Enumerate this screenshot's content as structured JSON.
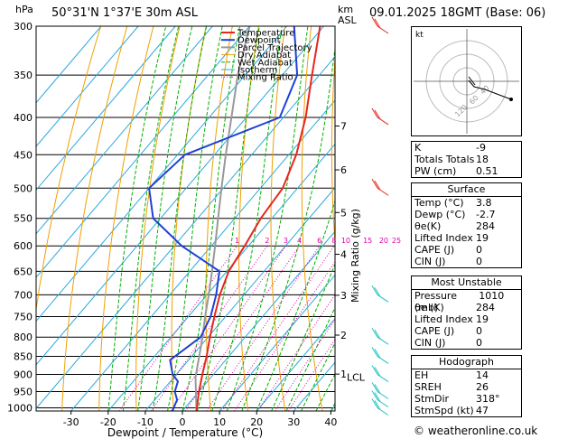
{
  "header": {
    "location": "50°31'N  1°37'E  30m  ASL",
    "datetime": "09.01.2025  18GMT  (Base: 06)",
    "hpa_label": "hPa",
    "km_label": "km",
    "asl_label": "ASL"
  },
  "chart_data": {
    "type": "skewt",
    "xlabel": "Dewpoint / Temperature (°C)",
    "ylabel": "Mixing Ratio (g/kg)",
    "temp_ticks": [
      -30,
      -20,
      -10,
      0,
      10,
      20,
      30,
      40
    ],
    "pressure_levels": [
      300,
      350,
      400,
      450,
      500,
      550,
      600,
      650,
      700,
      750,
      800,
      850,
      900,
      950,
      1000
    ],
    "km_ticks": [
      {
        "km": "1",
        "p": 899
      },
      {
        "km": "2",
        "p": 795
      },
      {
        "km": "3",
        "p": 701
      },
      {
        "km": "4",
        "p": 616
      },
      {
        "km": "5",
        "p": 540
      },
      {
        "km": "6",
        "p": 472
      },
      {
        "km": "7",
        "p": 411
      }
    ],
    "lcl": {
      "label": "LCL",
      "p": 908
    },
    "mixing_ratio_labels": [
      "1",
      "2",
      "3",
      "4",
      "6",
      "8",
      "10",
      "15",
      "20",
      "25"
    ],
    "legend": [
      "Temperature",
      "Dewpoint",
      "Parcel Trajectory",
      "Dry Adiabat",
      "Wet Adiabat",
      "Isotherm",
      "Mixing Ratio"
    ],
    "temperature": [
      {
        "p": 1010,
        "t": 3.8
      },
      {
        "p": 950,
        "t": 0
      },
      {
        "p": 900,
        "t": -3
      },
      {
        "p": 850,
        "t": -6
      },
      {
        "p": 800,
        "t": -9.5
      },
      {
        "p": 750,
        "t": -13
      },
      {
        "p": 700,
        "t": -16.5
      },
      {
        "p": 650,
        "t": -19.5
      },
      {
        "p": 600,
        "t": -21
      },
      {
        "p": 550,
        "t": -23
      },
      {
        "p": 500,
        "t": -24
      },
      {
        "p": 450,
        "t": -28
      },
      {
        "p": 400,
        "t": -34
      },
      {
        "p": 350,
        "t": -42
      },
      {
        "p": 300,
        "t": -51
      }
    ],
    "dewpoint": [
      {
        "p": 1010,
        "t": -2.7
      },
      {
        "p": 975,
        "t": -4
      },
      {
        "p": 950,
        "t": -6.5
      },
      {
        "p": 920,
        "t": -8
      },
      {
        "p": 900,
        "t": -11
      },
      {
        "p": 860,
        "t": -15
      },
      {
        "p": 800,
        "t": -12
      },
      {
        "p": 750,
        "t": -14
      },
      {
        "p": 700,
        "t": -17.5
      },
      {
        "p": 650,
        "t": -22
      },
      {
        "p": 600,
        "t": -38
      },
      {
        "p": 550,
        "t": -52
      },
      {
        "p": 500,
        "t": -60
      },
      {
        "p": 450,
        "t": -58
      },
      {
        "p": 400,
        "t": -41
      },
      {
        "p": 350,
        "t": -46
      },
      {
        "p": 300,
        "t": -58
      }
    ],
    "parcel": [
      {
        "p": 1010,
        "t": 3.8
      },
      {
        "p": 908,
        "t": -4.2
      },
      {
        "p": 850,
        "t": -8
      },
      {
        "p": 800,
        "t": -11.5
      },
      {
        "p": 750,
        "t": -15.5
      },
      {
        "p": 700,
        "t": -19.5
      },
      {
        "p": 650,
        "t": -24
      },
      {
        "p": 600,
        "t": -29
      },
      {
        "p": 550,
        "t": -34.5
      },
      {
        "p": 500,
        "t": -40.5
      },
      {
        "p": 450,
        "t": -47
      },
      {
        "p": 400,
        "t": -54
      },
      {
        "p": 350,
        "t": -62
      },
      {
        "p": 300,
        "t": -70
      }
    ],
    "wind_barbs_p": [
      300,
      400,
      500,
      700,
      800,
      850,
      900,
      950,
      975,
      1000
    ],
    "hodograph": {
      "label": "kt",
      "ring_labels": [
        "40",
        "60",
        "120"
      ]
    }
  },
  "indices": {
    "rows": [
      {
        "label": "K",
        "value": "-9"
      },
      {
        "label": "Totals Totals",
        "value": "18"
      },
      {
        "label": "PW (cm)",
        "value": "0.51"
      }
    ]
  },
  "surface": {
    "title": "Surface",
    "rows": [
      {
        "label": "Temp (°C)",
        "value": "3.8"
      },
      {
        "label": "Dewp (°C)",
        "value": "-2.7"
      },
      {
        "label": "θe(K)",
        "value": "284"
      },
      {
        "label": "Lifted Index",
        "value": "19"
      },
      {
        "label": "CAPE (J)",
        "value": "0"
      },
      {
        "label": "CIN (J)",
        "value": "0"
      }
    ]
  },
  "most_unstable": {
    "title": "Most Unstable",
    "rows": [
      {
        "label": "Pressure (mb)",
        "value": "1010"
      },
      {
        "label": "θe (K)",
        "value": "284"
      },
      {
        "label": "Lifted Index",
        "value": "19"
      },
      {
        "label": "CAPE (J)",
        "value": "0"
      },
      {
        "label": "CIN (J)",
        "value": "0"
      }
    ]
  },
  "hodograph_table": {
    "title": "Hodograph",
    "rows": [
      {
        "label": "EH",
        "value": "14"
      },
      {
        "label": "SREH",
        "value": "26"
      },
      {
        "label": "StmDir",
        "value": "318°"
      },
      {
        "label": "StmSpd (kt)",
        "value": "47"
      }
    ]
  },
  "footer": {
    "copyright": "© weatheronline.co.uk"
  },
  "colors": {
    "temperature": "#e8251f",
    "dewpoint": "#1f40d6",
    "parcel": "#999999",
    "dry_adiabat": "#f0a000",
    "wet_adiabat": "#00b000",
    "isotherm": "#2aa8e0",
    "mixing_ratio": "#e000b0",
    "wind": "#e8251f",
    "wind_low": "#20c0c0"
  }
}
